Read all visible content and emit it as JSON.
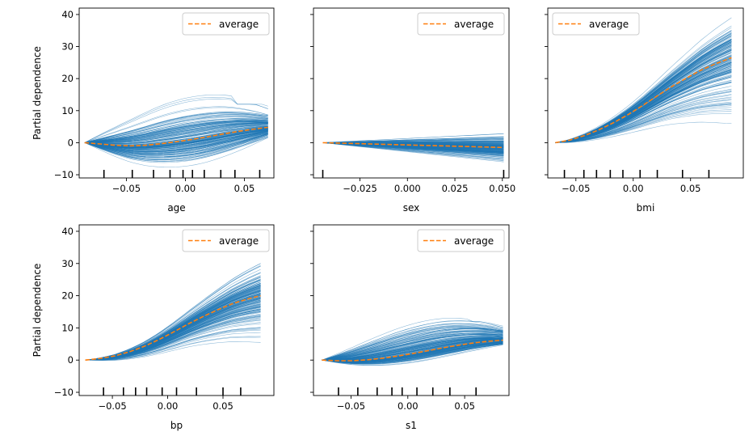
{
  "chart_data": [
    {
      "type": "line",
      "feature": "age",
      "xlabel": "age",
      "ylabel": "Partial dependence",
      "xlim": [
        -0.09,
        0.075
      ],
      "ylim": [
        -11,
        42
      ],
      "xticks": [
        -0.05,
        0.0,
        0.05
      ],
      "xticklabels": [
        "−0.05",
        "0.00",
        "0.05"
      ],
      "yticks": [
        -10,
        0,
        10,
        20,
        30,
        40
      ],
      "yticklabels": [
        "−10",
        "0",
        "10",
        "20",
        "30",
        "40"
      ],
      "show_yticklabels": true,
      "legend": {
        "label": "average",
        "position": "top-right"
      },
      "x": [
        -0.0854,
        -0.0724,
        -0.0595,
        -0.0465,
        -0.0335,
        -0.0205,
        -0.0075,
        0.0055,
        0.0185,
        0.0315,
        0.0445,
        0.0575,
        0.07
      ],
      "average": [
        0.0,
        -0.4,
        -0.8,
        -1.0,
        -0.8,
        -0.3,
        0.3,
        1.0,
        1.8,
        2.7,
        3.5,
        4.2,
        4.8
      ],
      "ice": {
        "lines": 180,
        "spread_shape": "hump",
        "upper_extreme": 14.5,
        "lower_extreme": -9.5,
        "end_max": 11,
        "end_min": -4
      },
      "deciles": [
        -0.069,
        -0.045,
        -0.027,
        -0.013,
        -0.002,
        0.006,
        0.016,
        0.03,
        0.042,
        0.063
      ]
    },
    {
      "type": "line",
      "feature": "sex",
      "xlabel": "sex",
      "ylabel": "",
      "xlim": [
        -0.0495,
        0.0535
      ],
      "ylim": [
        -11,
        42
      ],
      "xticks": [
        -0.025,
        0.0,
        0.025,
        0.05
      ],
      "xticklabels": [
        "−0.025",
        "0.000",
        "0.025",
        "0.050"
      ],
      "yticks": [
        -10,
        0,
        10,
        20,
        30,
        40
      ],
      "show_yticklabels": false,
      "legend": {
        "label": "average",
        "position": "top-right"
      },
      "x": [
        -0.0446,
        0.0507
      ],
      "average": [
        0.0,
        -1.5
      ],
      "ice": {
        "lines": 180,
        "spread_shape": "linear",
        "upper_extreme": 2.8,
        "lower_extreme": -6.0
      },
      "deciles": [
        -0.0446,
        0.0507
      ]
    },
    {
      "type": "line",
      "feature": "bmi",
      "xlabel": "bmi",
      "ylabel": "",
      "xlim": [
        -0.0745,
        0.096
      ],
      "ylim": [
        -11,
        42
      ],
      "xticks": [
        -0.05,
        0.0,
        0.05
      ],
      "xticklabels": [
        "−0.05",
        "0.00",
        "0.05"
      ],
      "yticks": [
        -10,
        0,
        10,
        20,
        30,
        40
      ],
      "show_yticklabels": false,
      "legend": {
        "label": "average",
        "position": "top-left"
      },
      "x": [
        -0.0679,
        -0.0553,
        -0.0427,
        -0.03,
        -0.0174,
        -0.0048,
        0.0078,
        0.0205,
        0.0331,
        0.0457,
        0.0583,
        0.0709,
        0.0857
      ],
      "average": [
        0.0,
        0.8,
        2.2,
        4.0,
        6.2,
        8.7,
        11.5,
        14.5,
        17.4,
        20.0,
        22.5,
        24.5,
        26.5
      ],
      "ice": {
        "lines": 180,
        "spread_shape": "fan",
        "upper_extreme": 39,
        "lower_extreme": 6,
        "middle_dip": -1.5
      },
      "deciles": [
        -0.06,
        -0.043,
        -0.032,
        -0.02,
        -0.009,
        0.006,
        0.021,
        0.043,
        0.066
      ]
    },
    {
      "type": "line",
      "feature": "bp",
      "xlabel": "bp",
      "ylabel": "Partial dependence",
      "xlim": [
        -0.08,
        0.096
      ],
      "ylim": [
        -11,
        42
      ],
      "xticks": [
        -0.05,
        0.0,
        0.05
      ],
      "xticklabels": [
        "−0.05",
        "0.00",
        "0.05"
      ],
      "yticks": [
        -10,
        0,
        10,
        20,
        30,
        40
      ],
      "yticklabels": [
        "−10",
        "0",
        "10",
        "20",
        "30",
        "40"
      ],
      "show_yticklabels": true,
      "legend": {
        "label": "average",
        "position": "top-right"
      },
      "x": [
        -0.0745,
        -0.0611,
        -0.0478,
        -0.0344,
        -0.021,
        -0.0077,
        0.0057,
        0.019,
        0.0324,
        0.0458,
        0.0591,
        0.0725,
        0.084
      ],
      "average": [
        0.0,
        0.5,
        1.3,
        2.6,
        4.3,
        6.4,
        8.8,
        11.3,
        13.6,
        15.7,
        17.6,
        19.0,
        20.0
      ],
      "ice": {
        "lines": 180,
        "spread_shape": "fan",
        "upper_extreme": 30,
        "lower_extreme": 5.5,
        "middle_dip": -1.5
      },
      "deciles": [
        -0.058,
        -0.04,
        -0.029,
        -0.019,
        -0.005,
        0.008,
        0.026,
        0.05,
        0.066
      ]
    },
    {
      "type": "line",
      "feature": "s1",
      "xlabel": "s1",
      "ylabel": "",
      "xlim": [
        -0.083,
        0.089
      ],
      "ylim": [
        -11,
        42
      ],
      "xticks": [
        -0.05,
        0.0,
        0.05
      ],
      "xticklabels": [
        "−0.05",
        "0.00",
        "0.05"
      ],
      "yticks": [
        -10,
        0,
        10,
        20,
        30,
        40
      ],
      "show_yticklabels": false,
      "legend": {
        "label": "average",
        "position": "top-right"
      },
      "x": [
        -0.0756,
        -0.0621,
        -0.0486,
        -0.0351,
        -0.0216,
        -0.0081,
        0.0054,
        0.0189,
        0.0324,
        0.0459,
        0.0594,
        0.0729,
        0.0837
      ],
      "average": [
        0.0,
        -0.2,
        -0.2,
        0.1,
        0.6,
        1.3,
        2.1,
        3.0,
        3.9,
        4.7,
        5.4,
        5.9,
        6.2
      ],
      "ice": {
        "lines": 180,
        "spread_shape": "hump",
        "upper_extreme": 12,
        "lower_extreme": -3.5,
        "end_max": 11,
        "end_min": 2.5
      },
      "deciles": [
        -0.061,
        -0.044,
        -0.027,
        -0.014,
        -0.005,
        0.008,
        0.022,
        0.037,
        0.06
      ]
    }
  ],
  "colors": {
    "ice": "#1f77b4",
    "average": "#ff7f0e",
    "axes": "#000000",
    "legend_border": "#cccccc"
  }
}
